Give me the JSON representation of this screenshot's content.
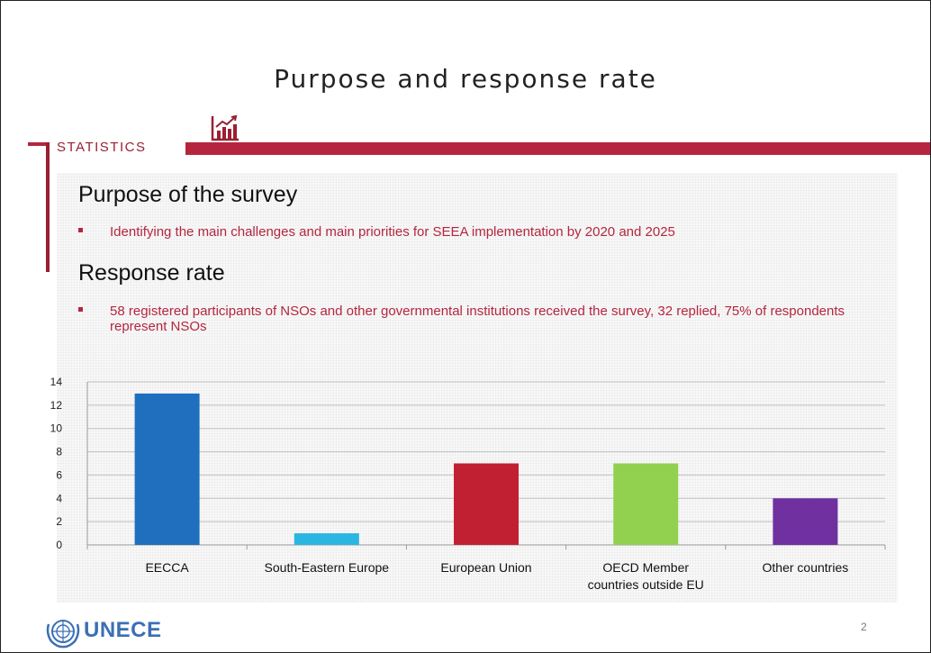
{
  "slide": {
    "title": "Purpose and response rate",
    "tag": "STATISTICS",
    "page_number": "2",
    "logo_text": "UNECE"
  },
  "sections": [
    {
      "heading": "Purpose of the survey",
      "bullets": [
        "Identifying the main challenges and main priorities for SEEA implementation by 2020 and 2025"
      ]
    },
    {
      "heading": "Response rate",
      "bullets": [
        "58 registered participants of NSOs and other governmental institutions received the survey, 32 replied, 75% of respondents represent NSOs"
      ]
    }
  ],
  "colors": {
    "accent": "#b5263e",
    "bullet_text": "#b5263e"
  },
  "icons": {
    "statistics": "chart-growth-icon",
    "logo": "un-emblem-icon"
  },
  "chart_data": {
    "type": "bar",
    "categories": [
      "EECCA",
      "South-Eastern Europe",
      "European Union",
      "OECD Member countries outside EU",
      "Other countries"
    ],
    "category_lines": [
      [
        "EECCA"
      ],
      [
        "South-Eastern Europe"
      ],
      [
        "European Union"
      ],
      [
        "OECD Member",
        "countries outside EU"
      ],
      [
        "Other countries"
      ]
    ],
    "values": [
      13,
      1,
      7,
      7,
      4
    ],
    "colors": [
      "#1f6fbe",
      "#2ab6e1",
      "#c12032",
      "#92d050",
      "#7030a0"
    ],
    "ylim": [
      0,
      14
    ],
    "yticks": [
      0,
      2,
      4,
      6,
      8,
      10,
      12,
      14
    ],
    "grid": true,
    "legend": "none",
    "title": "",
    "xlabel": "",
    "ylabel": ""
  }
}
